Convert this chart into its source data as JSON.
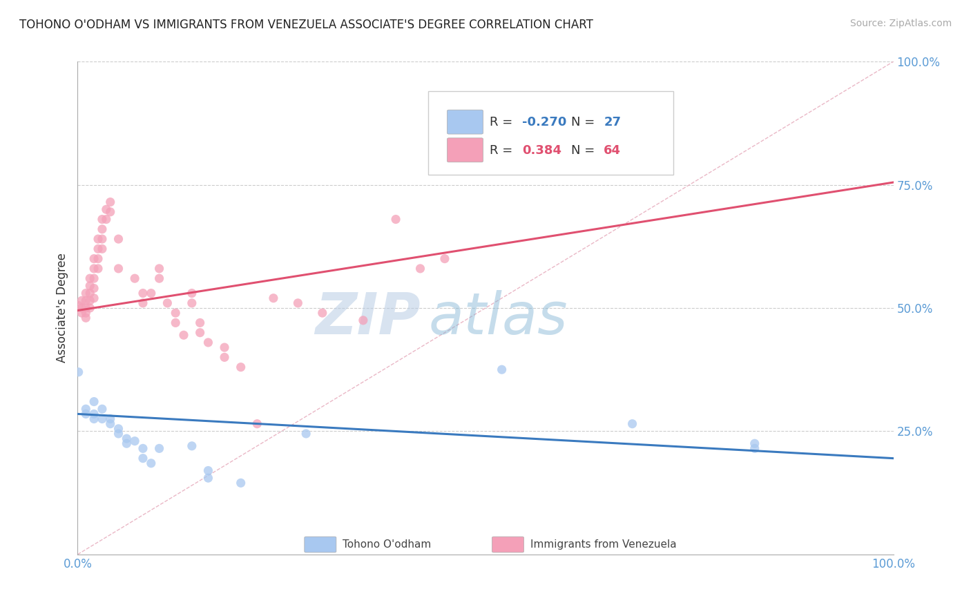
{
  "title": "TOHONO O'ODHAM VS IMMIGRANTS FROM VENEZUELA ASSOCIATE'S DEGREE CORRELATION CHART",
  "source": "Source: ZipAtlas.com",
  "ylabel": "Associate's Degree",
  "xlim": [
    0.0,
    1.0
  ],
  "ylim": [
    0.0,
    1.0
  ],
  "watermark_zip": "ZIP",
  "watermark_atlas": "atlas",
  "blue_color": "#a8c8f0",
  "pink_color": "#f4a0b8",
  "blue_line_color": "#3a7abf",
  "pink_line_color": "#e05070",
  "diag_line_color": "#e8b0c0",
  "grid_color": "#cccccc",
  "title_color": "#222222",
  "axis_label_color": "#5b9bd5",
  "legend_r1_color": "#3a7abf",
  "legend_r2_color": "#e05070",
  "blue_scatter": [
    [
      0.001,
      0.37
    ],
    [
      0.01,
      0.295
    ],
    [
      0.01,
      0.285
    ],
    [
      0.02,
      0.31
    ],
    [
      0.02,
      0.285
    ],
    [
      0.02,
      0.275
    ],
    [
      0.03,
      0.295
    ],
    [
      0.03,
      0.275
    ],
    [
      0.04,
      0.275
    ],
    [
      0.04,
      0.265
    ],
    [
      0.05,
      0.255
    ],
    [
      0.05,
      0.245
    ],
    [
      0.06,
      0.235
    ],
    [
      0.06,
      0.225
    ],
    [
      0.07,
      0.23
    ],
    [
      0.08,
      0.215
    ],
    [
      0.08,
      0.195
    ],
    [
      0.09,
      0.185
    ],
    [
      0.1,
      0.215
    ],
    [
      0.14,
      0.22
    ],
    [
      0.16,
      0.17
    ],
    [
      0.16,
      0.155
    ],
    [
      0.2,
      0.145
    ],
    [
      0.28,
      0.245
    ],
    [
      0.52,
      0.375
    ],
    [
      0.68,
      0.265
    ],
    [
      0.83,
      0.225
    ],
    [
      0.83,
      0.215
    ]
  ],
  "pink_scatter": [
    [
      0.001,
      0.505
    ],
    [
      0.005,
      0.515
    ],
    [
      0.005,
      0.5
    ],
    [
      0.005,
      0.49
    ],
    [
      0.01,
      0.53
    ],
    [
      0.01,
      0.515
    ],
    [
      0.01,
      0.5
    ],
    [
      0.01,
      0.49
    ],
    [
      0.01,
      0.48
    ],
    [
      0.015,
      0.56
    ],
    [
      0.015,
      0.545
    ],
    [
      0.015,
      0.53
    ],
    [
      0.015,
      0.515
    ],
    [
      0.015,
      0.5
    ],
    [
      0.02,
      0.6
    ],
    [
      0.02,
      0.58
    ],
    [
      0.02,
      0.56
    ],
    [
      0.02,
      0.54
    ],
    [
      0.02,
      0.52
    ],
    [
      0.025,
      0.64
    ],
    [
      0.025,
      0.62
    ],
    [
      0.025,
      0.6
    ],
    [
      0.025,
      0.58
    ],
    [
      0.03,
      0.68
    ],
    [
      0.03,
      0.66
    ],
    [
      0.03,
      0.64
    ],
    [
      0.03,
      0.62
    ],
    [
      0.035,
      0.7
    ],
    [
      0.035,
      0.68
    ],
    [
      0.04,
      0.715
    ],
    [
      0.04,
      0.695
    ],
    [
      0.05,
      0.64
    ],
    [
      0.05,
      0.58
    ],
    [
      0.07,
      0.56
    ],
    [
      0.08,
      0.53
    ],
    [
      0.08,
      0.51
    ],
    [
      0.09,
      0.53
    ],
    [
      0.1,
      0.58
    ],
    [
      0.1,
      0.56
    ],
    [
      0.11,
      0.51
    ],
    [
      0.12,
      0.49
    ],
    [
      0.12,
      0.47
    ],
    [
      0.13,
      0.445
    ],
    [
      0.14,
      0.53
    ],
    [
      0.14,
      0.51
    ],
    [
      0.15,
      0.47
    ],
    [
      0.15,
      0.45
    ],
    [
      0.16,
      0.43
    ],
    [
      0.18,
      0.42
    ],
    [
      0.18,
      0.4
    ],
    [
      0.2,
      0.38
    ],
    [
      0.22,
      0.265
    ],
    [
      0.24,
      0.52
    ],
    [
      0.27,
      0.51
    ],
    [
      0.3,
      0.49
    ],
    [
      0.35,
      0.475
    ],
    [
      0.39,
      0.68
    ],
    [
      0.42,
      0.58
    ],
    [
      0.45,
      0.6
    ]
  ],
  "blue_trend": [
    0.0,
    0.285,
    1.0,
    0.195
  ],
  "pink_trend": [
    0.0,
    0.495,
    1.0,
    0.755
  ],
  "y_ticks": [
    0.25,
    0.5,
    0.75,
    1.0
  ],
  "y_tick_labels": [
    "25.0%",
    "50.0%",
    "75.0%",
    "100.0%"
  ]
}
